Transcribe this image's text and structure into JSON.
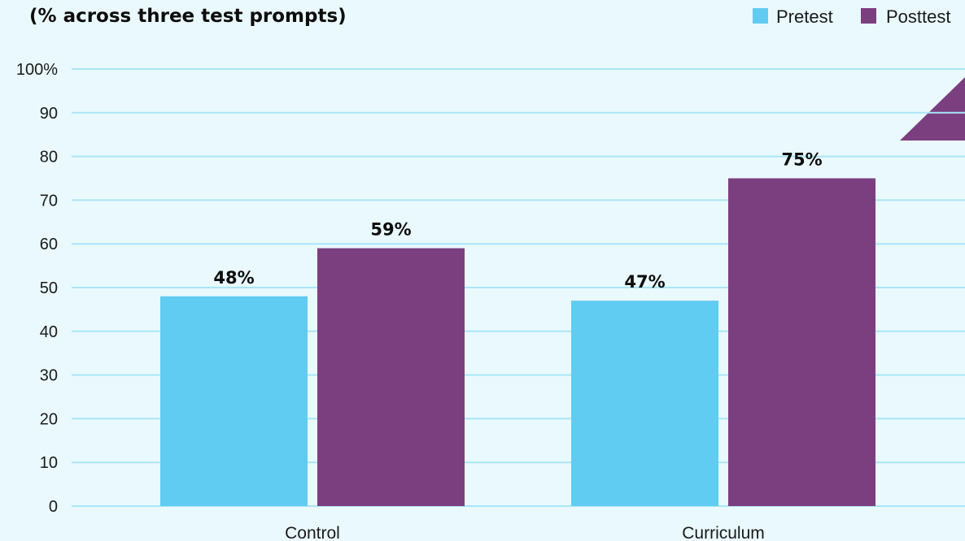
{
  "colors": {
    "background": "#eaf9fd",
    "gridline": "#a9e6f7",
    "pretest": "#60ccf2",
    "posttest": "#7b3f80",
    "accent_triangle": "#7b3f80"
  },
  "chart_data": {
    "type": "bar",
    "subtitle": "(% across three test prompts)",
    "categories": [
      "Control",
      "Curriculum"
    ],
    "series": [
      {
        "name": "Pretest",
        "values": [
          48,
          47
        ],
        "labels": [
          "48%",
          "47%"
        ]
      },
      {
        "name": "Posttest",
        "values": [
          59,
          75
        ],
        "labels": [
          "59%",
          "75%"
        ]
      }
    ],
    "ylim": [
      0,
      100
    ],
    "yticks": [
      0,
      10,
      20,
      30,
      40,
      50,
      60,
      70,
      80,
      90,
      100
    ],
    "ytick_labels": [
      "0",
      "10",
      "20",
      "30",
      "40",
      "50",
      "60",
      "70",
      "80",
      "90",
      "100%"
    ],
    "grid": true,
    "legend_position": "top-right"
  }
}
